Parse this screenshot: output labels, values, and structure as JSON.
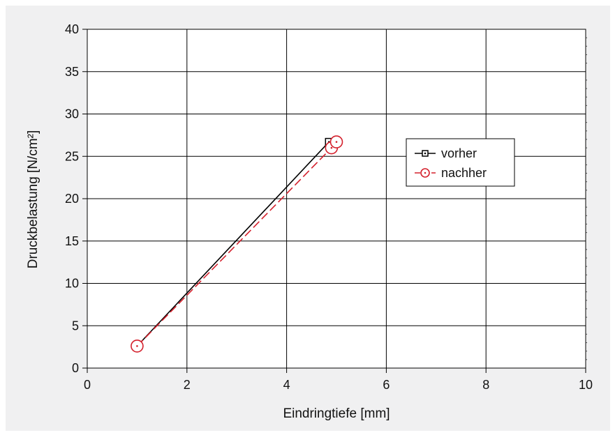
{
  "chart_data": {
    "type": "line",
    "title": "",
    "xlabel": "Eindringtiefe [mm]",
    "ylabel": "Druckbelastung [N/cm²]",
    "xlim": [
      0,
      10
    ],
    "ylim": [
      0,
      40
    ],
    "xticks": [
      0,
      2,
      4,
      6,
      8,
      10
    ],
    "yticks": [
      0,
      5,
      10,
      15,
      20,
      25,
      30,
      35,
      40
    ],
    "xtick_labels": [
      "0",
      "2",
      "4",
      "6",
      "8",
      "10"
    ],
    "ytick_labels": [
      "0",
      "5",
      "10",
      "15",
      "20",
      "25",
      "30",
      "35",
      "40"
    ],
    "grid": true,
    "legend_position": "right",
    "series": [
      {
        "name": "vorher",
        "x": [
          1.0,
          4.85
        ],
        "y": [
          2.6,
          26.7
        ],
        "color": "#000000",
        "line_style": "solid",
        "marker": "square-dot"
      },
      {
        "name": "nachher",
        "x": [
          1.0,
          4.9,
          5.0
        ],
        "y": [
          2.6,
          26.0,
          26.7
        ],
        "color": "#d4202c",
        "line_style": "dashed",
        "marker": "circle-dot"
      }
    ]
  }
}
